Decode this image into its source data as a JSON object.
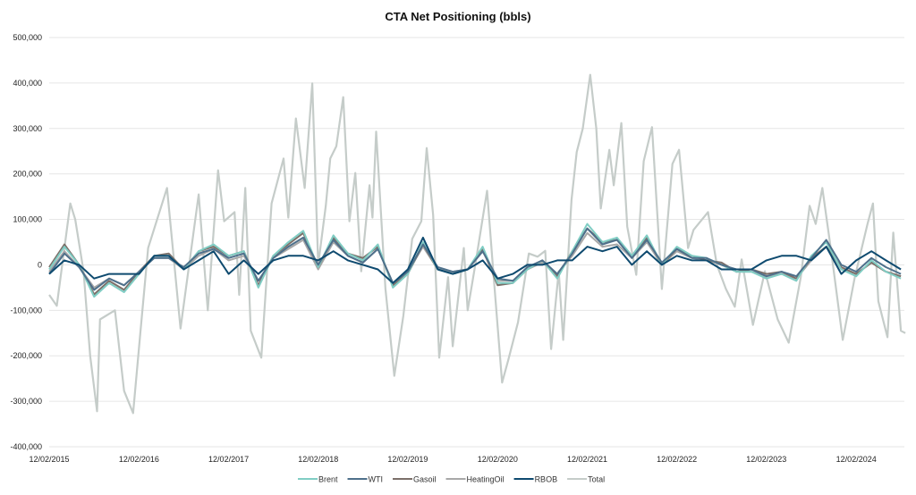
{
  "chart_data": {
    "type": "line",
    "title": "CTA Net Positioning (bbls)",
    "xlabel": "",
    "ylabel": "",
    "ylim": [
      -400000,
      500000
    ],
    "yticks": [
      500000,
      400000,
      300000,
      200000,
      100000,
      0,
      -100000,
      -200000,
      -300000,
      -400000
    ],
    "ytick_labels": [
      "500,000",
      "400,000",
      "300,000",
      "200,000",
      "100,000",
      "0",
      "-100,000",
      "-200,000",
      "-300,000",
      "-400,000"
    ],
    "xlim": [
      "2015-12-02",
      "2025-06-20"
    ],
    "xticks": [
      "2015-12-02",
      "2016-12-02",
      "2017-12-02",
      "2018-12-02",
      "2019-12-02",
      "2020-12-02",
      "2021-12-02",
      "2022-12-02",
      "2023-12-02",
      "2024-12-02"
    ],
    "xtick_labels": [
      "12/02/2015",
      "12/02/2016",
      "12/02/2017",
      "12/02/2018",
      "12/02/2019",
      "12/02/2020",
      "12/02/2021",
      "12/02/2022",
      "12/02/2023",
      "12/02/2024"
    ],
    "grid": "horizontal",
    "legend_position": "bottom",
    "x": [
      "2015-12-02",
      "2016-02-02",
      "2016-04-02",
      "2016-06-02",
      "2016-08-02",
      "2016-10-02",
      "2016-12-02",
      "2017-02-02",
      "2017-04-02",
      "2017-06-02",
      "2017-08-02",
      "2017-10-02",
      "2017-12-02",
      "2018-02-02",
      "2018-04-02",
      "2018-06-02",
      "2018-08-02",
      "2018-10-02",
      "2018-12-02",
      "2019-02-02",
      "2019-04-02",
      "2019-06-02",
      "2019-08-02",
      "2019-10-02",
      "2019-12-02",
      "2020-02-02",
      "2020-04-02",
      "2020-06-02",
      "2020-08-02",
      "2020-10-02",
      "2020-12-02",
      "2021-02-02",
      "2021-04-02",
      "2021-06-02",
      "2021-08-02",
      "2021-10-02",
      "2021-12-02",
      "2022-02-02",
      "2022-04-02",
      "2022-06-02",
      "2022-08-02",
      "2022-10-02",
      "2022-12-02",
      "2023-02-02",
      "2023-04-02",
      "2023-06-02",
      "2023-08-02",
      "2023-10-02",
      "2023-12-02",
      "2024-02-02",
      "2024-04-02",
      "2024-06-02",
      "2024-08-02",
      "2024-10-02",
      "2024-12-02",
      "2025-02-02",
      "2025-04-02",
      "2025-06-02"
    ],
    "series": [
      {
        "name": "Total",
        "color": "#c5ccc9",
        "x": [
          "2015-12-02",
          "2016-01-02",
          "2016-02-26",
          "2016-03-17",
          "2016-04-20",
          "2016-05-17",
          "2016-06-14",
          "2016-06-26",
          "2016-08-26",
          "2016-10-02",
          "2016-11-08",
          "2016-12-08",
          "2017-01-08",
          "2017-03-26",
          "2017-05-20",
          "2017-08-02",
          "2017-09-08",
          "2017-10-20",
          "2017-11-14",
          "2017-12-26",
          "2018-01-14",
          "2018-02-08",
          "2018-03-02",
          "2018-04-14",
          "2018-05-26",
          "2018-07-14",
          "2018-08-02",
          "2018-09-02",
          "2018-10-08",
          "2018-11-08",
          "2018-12-02",
          "2019-01-02",
          "2019-01-20",
          "2019-02-14",
          "2019-03-14",
          "2019-04-08",
          "2019-05-02",
          "2019-05-26",
          "2019-06-29",
          "2019-07-11",
          "2019-07-26",
          "2019-09-02",
          "2019-10-08",
          "2019-11-14",
          "2019-12-20",
          "2020-01-26",
          "2020-02-17",
          "2020-03-14",
          "2020-04-08",
          "2020-05-14",
          "2020-06-02",
          "2020-07-17",
          "2020-08-02",
          "2020-09-02",
          "2020-10-20",
          "2020-11-14",
          "2020-12-20",
          "2021-01-14",
          "2021-02-23",
          "2021-04-08",
          "2021-05-14",
          "2021-06-14",
          "2021-07-08",
          "2021-08-08",
          "2021-08-26",
          "2021-09-29",
          "2021-10-20",
          "2021-11-14",
          "2021-12-14",
          "2022-01-08",
          "2022-01-26",
          "2022-03-02",
          "2022-03-20",
          "2022-04-20",
          "2022-05-14",
          "2022-06-20",
          "2022-07-20",
          "2022-08-23",
          "2022-10-02",
          "2022-11-14",
          "2022-12-11",
          "2023-01-17",
          "2023-02-08",
          "2023-04-08",
          "2023-05-14",
          "2023-06-20",
          "2023-07-26",
          "2023-08-23",
          "2023-10-08",
          "2023-11-26",
          "2024-01-17",
          "2024-03-02",
          "2024-04-20",
          "2024-05-26",
          "2024-06-20",
          "2024-07-17",
          "2024-08-23",
          "2024-10-08",
          "2024-11-26",
          "2025-01-17",
          "2025-02-08",
          "2025-03-02",
          "2025-04-08",
          "2025-05-02",
          "2025-06-02",
          "2025-06-20"
        ],
        "values": [
          -66000,
          -90000,
          135000,
          100000,
          -14000,
          -200000,
          -322000,
          -120000,
          -100000,
          -277000,
          -326000,
          -145000,
          37000,
          169000,
          -140000,
          155000,
          -100000,
          208000,
          96000,
          116000,
          -66000,
          169000,
          -145000,
          -204000,
          135000,
          234000,
          104000,
          322000,
          169000,
          399000,
          0,
          130000,
          234000,
          261000,
          369000,
          96000,
          202000,
          -14000,
          175000,
          104000,
          293000,
          -53000,
          -244000,
          -112000,
          57000,
          96000,
          257000,
          110000,
          -204000,
          -27000,
          -179000,
          37000,
          -100000,
          0,
          163000,
          -14000,
          -259000,
          -210000,
          -126000,
          25000,
          18000,
          31000,
          -185000,
          -14000,
          -165000,
          143000,
          248000,
          300000,
          418000,
          300000,
          124000,
          253000,
          175000,
          312000,
          84000,
          -22000,
          228000,
          303000,
          -53000,
          222000,
          253000,
          37000,
          77000,
          116000,
          0,
          -53000,
          -92000,
          12000,
          -132000,
          -14000,
          -120000,
          -171000,
          -27000,
          130000,
          90000,
          169000,
          25000,
          -165000,
          -27000,
          90000,
          135000,
          -80000,
          -159000,
          71000,
          -145000,
          -150000
        ]
      },
      {
        "name": "HeatingOil",
        "color": "#a8a8a8",
        "values": [
          -15000,
          30000,
          -5000,
          -50000,
          -30000,
          -45000,
          -15000,
          15000,
          15000,
          -10000,
          20000,
          35000,
          10000,
          20000,
          -35000,
          15000,
          35000,
          55000,
          -10000,
          50000,
          20000,
          5000,
          35000,
          -40000,
          -15000,
          40000,
          -10000,
          -15000,
          -10000,
          30000,
          -35000,
          -35000,
          -10000,
          5000,
          -20000,
          20000,
          70000,
          40000,
          45000,
          15000,
          50000,
          0,
          30000,
          15000,
          10000,
          0,
          -15000,
          -15000,
          -25000,
          -20000,
          -30000,
          10000,
          40000,
          -10000,
          -20000,
          5000,
          -15000,
          -25000
        ]
      },
      {
        "name": "Gasoil",
        "color": "#7b6f69",
        "values": [
          -5000,
          45000,
          0,
          -65000,
          -35000,
          -55000,
          -15000,
          20000,
          25000,
          -10000,
          30000,
          40000,
          20000,
          30000,
          -45000,
          20000,
          45000,
          70000,
          -5000,
          60000,
          25000,
          15000,
          40000,
          -45000,
          -20000,
          45000,
          -10000,
          -20000,
          -10000,
          35000,
          -45000,
          -40000,
          -10000,
          10000,
          -25000,
          30000,
          80000,
          50000,
          55000,
          20000,
          60000,
          0,
          35000,
          20000,
          10000,
          5000,
          -15000,
          -10000,
          -20000,
          -15000,
          -30000,
          15000,
          40000,
          -5000,
          -20000,
          5000,
          -15000,
          -25000
        ]
      },
      {
        "name": "Brent",
        "color": "#80cdc4",
        "values": [
          -10000,
          40000,
          0,
          -70000,
          -40000,
          -60000,
          -20000,
          20000,
          20000,
          -10000,
          30000,
          45000,
          20000,
          30000,
          -50000,
          20000,
          50000,
          75000,
          -5000,
          65000,
          25000,
          10000,
          45000,
          -50000,
          -20000,
          50000,
          -10000,
          -20000,
          -10000,
          40000,
          -40000,
          -40000,
          -10000,
          10000,
          -30000,
          30000,
          90000,
          50000,
          60000,
          20000,
          65000,
          0,
          40000,
          20000,
          15000,
          0,
          -15000,
          -15000,
          -30000,
          -20000,
          -35000,
          20000,
          50000,
          -10000,
          -25000,
          10000,
          -15000,
          -30000
        ]
      },
      {
        "name": "WTI",
        "color": "#4e708b",
        "values": [
          -20000,
          25000,
          -5000,
          -55000,
          -30000,
          -45000,
          -15000,
          15000,
          15000,
          -5000,
          25000,
          35000,
          15000,
          25000,
          -35000,
          15000,
          40000,
          60000,
          0,
          55000,
          20000,
          5000,
          35000,
          -40000,
          -15000,
          45000,
          -5000,
          -15000,
          -10000,
          30000,
          -30000,
          -35000,
          -5000,
          10000,
          -20000,
          25000,
          80000,
          45000,
          55000,
          15000,
          55000,
          5000,
          35000,
          15000,
          15000,
          0,
          -10000,
          -10000,
          -25000,
          -15000,
          -25000,
          15000,
          55000,
          0,
          -15000,
          15000,
          -5000,
          -20000
        ]
      },
      {
        "name": "RBOB",
        "color": "#0e4a6f",
        "values": [
          -20000,
          10000,
          0,
          -30000,
          -20000,
          -20000,
          -20000,
          20000,
          20000,
          -10000,
          10000,
          30000,
          -20000,
          10000,
          -20000,
          10000,
          20000,
          20000,
          10000,
          30000,
          10000,
          0,
          -10000,
          -40000,
          -10000,
          60000,
          -10000,
          -20000,
          -10000,
          10000,
          -30000,
          -20000,
          0,
          0,
          10000,
          10000,
          40000,
          30000,
          40000,
          0,
          30000,
          0,
          20000,
          10000,
          10000,
          -10000,
          -10000,
          -10000,
          10000,
          20000,
          20000,
          10000,
          40000,
          -20000,
          10000,
          30000,
          10000,
          -10000
        ]
      }
    ],
    "legend_order": [
      "Brent",
      "WTI",
      "Gasoil",
      "HeatingOil",
      "RBOB",
      "Total"
    ]
  }
}
